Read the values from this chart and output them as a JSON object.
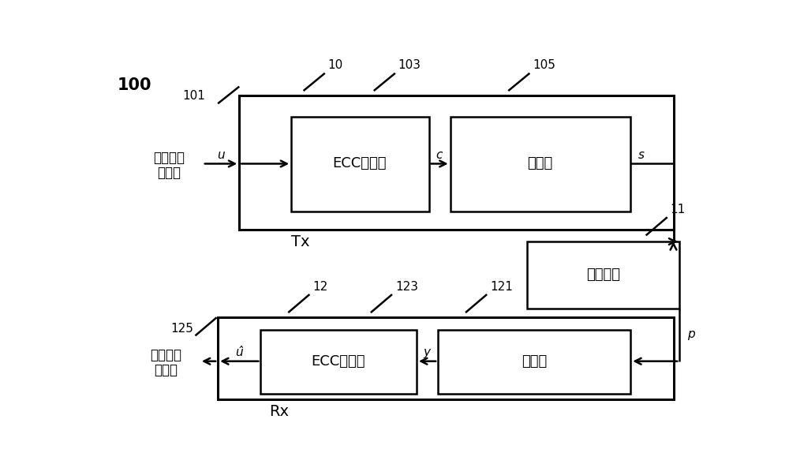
{
  "bg_color": "#ffffff",
  "figsize": [
    10.0,
    5.93
  ],
  "dpi": 100,
  "ecc_encoder": "ECC编码器",
  "modulator": "调制器",
  "channel": "传输信道",
  "ecc_decoder": "ECC解码器",
  "demodulator": "解调器",
  "digital_input_1": "数字输入",
  "digital_input_2": "数据块",
  "digital_output_1": "数字输出",
  "digital_output_2": "数据块",
  "tx_label": "Tx",
  "rx_label": "Rx",
  "label_100": "100",
  "label_10": "10",
  "label_101": "101",
  "label_103": "103",
  "label_105": "105",
  "label_11": "11",
  "label_12": "12",
  "label_123": "123",
  "label_121": "121",
  "label_125": "125",
  "u_label": "u",
  "c_label": "c",
  "s_label": "s",
  "p_label": "p",
  "y_label": "y",
  "u_hat_label": "û"
}
